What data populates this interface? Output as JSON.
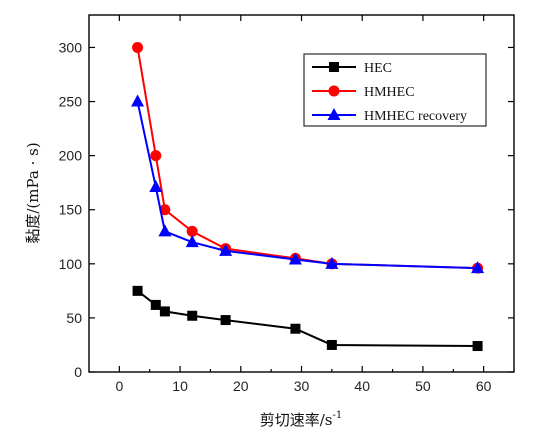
{
  "chart_data": {
    "type": "line",
    "xlabel": "剪切速率/s",
    "xlabel_sup": "-1",
    "ylabel": "黏度/(mPa · s)",
    "xlim": [
      -5,
      65
    ],
    "ylim": [
      0,
      330
    ],
    "x_ticks": [
      0,
      10,
      20,
      30,
      40,
      50,
      60
    ],
    "y_ticks": [
      0,
      50,
      100,
      150,
      200,
      250,
      300
    ],
    "x_tick_labels": [
      "0",
      "10",
      "20",
      "30",
      "40",
      "50",
      "60"
    ],
    "y_tick_labels": [
      "0",
      "50",
      "100",
      "150",
      "200",
      "250",
      "300"
    ],
    "legend_position": "top-right",
    "series": [
      {
        "name": "HEC",
        "color": "#000000",
        "marker": "square",
        "points": [
          [
            3,
            75
          ],
          [
            6,
            62
          ],
          [
            7.5,
            56
          ],
          [
            12,
            52
          ],
          [
            17.5,
            48
          ],
          [
            29,
            40
          ],
          [
            35,
            25
          ],
          [
            59,
            24
          ]
        ]
      },
      {
        "name": "HMHEC",
        "color": "#ff0000",
        "marker": "circle",
        "points": [
          [
            3,
            300
          ],
          [
            6,
            200
          ],
          [
            7.5,
            150
          ],
          [
            12,
            130
          ],
          [
            17.5,
            114
          ],
          [
            29,
            105
          ],
          [
            35,
            100
          ],
          [
            59,
            96
          ]
        ]
      },
      {
        "name": "HMHEC recovery",
        "color": "#0000ff",
        "marker": "triangle",
        "points": [
          [
            3,
            250
          ],
          [
            6,
            171
          ],
          [
            7.5,
            130
          ],
          [
            12,
            120
          ],
          [
            17.5,
            112
          ],
          [
            29,
            104
          ],
          [
            35,
            100
          ],
          [
            59,
            96
          ]
        ]
      }
    ]
  }
}
